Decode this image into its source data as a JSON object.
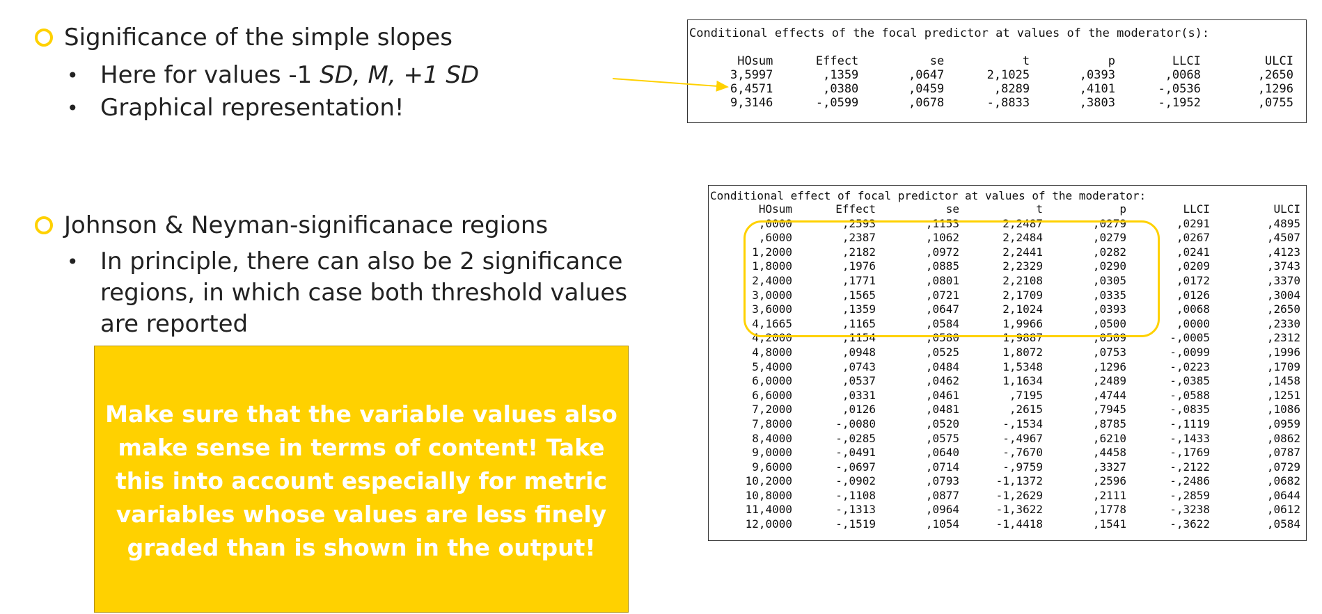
{
  "bullets": {
    "simple_slopes": {
      "title": "Significance of the simple slopes",
      "sub1_prefix": "Here for values -1 ",
      "sub1_sd1": "SD",
      "sub1_sep1": ", ",
      "sub1_m": "M",
      "sub1_sep2": ", +1 ",
      "sub1_sd2": "SD",
      "sub2": "Graphical representation!"
    },
    "jn": {
      "title": "Johnson & Neyman-significanace regions",
      "sub1_line1": "In principle, there can also be 2 significance",
      "sub1_line2": "regions, in which case both threshold values",
      "sub1_line3": "are reported"
    }
  },
  "note": {
    "text": "Make sure that the variable values also make sense in terms of content! Take this into account especially for metric variables whose values are less finely graded than is shown in the output!"
  },
  "colors": {
    "accent": "#FFD100",
    "note_text": "#FFFFFF"
  },
  "icons": {
    "bullet_level1": "circle-outline-icon",
    "bullet_level2": "dot-icon"
  },
  "table1": {
    "title": "Conditional effects of the focal predictor at values of the moderator(s):",
    "headers": [
      "HOsum",
      "Effect",
      "se",
      "t",
      "p",
      "LLCI",
      "ULCI"
    ],
    "rows": [
      [
        "3,5997",
        ",1359",
        ",0647",
        "2,1025",
        ",0393",
        ",0068",
        ",2650"
      ],
      [
        "6,4571",
        ",0380",
        ",0459",
        ",8289",
        ",4101",
        "-,0536",
        ",1296"
      ],
      [
        "9,3146",
        "-,0599",
        ",0678",
        "-,8833",
        ",3803",
        "-,1952",
        ",0755"
      ]
    ]
  },
  "table2": {
    "title": "Conditional effect of focal predictor at values of the moderator:",
    "headers": [
      "HOsum",
      "Effect",
      "se",
      "t",
      "p",
      "LLCI",
      "ULCI"
    ],
    "rows": [
      [
        ",0000",
        ",2593",
        ",1153",
        "2,2487",
        ",0279",
        ",0291",
        ",4895"
      ],
      [
        ",6000",
        ",2387",
        ",1062",
        "2,2484",
        ",0279",
        ",0267",
        ",4507"
      ],
      [
        "1,2000",
        ",2182",
        ",0972",
        "2,2441",
        ",0282",
        ",0241",
        ",4123"
      ],
      [
        "1,8000",
        ",1976",
        ",0885",
        "2,2329",
        ",0290",
        ",0209",
        ",3743"
      ],
      [
        "2,4000",
        ",1771",
        ",0801",
        "2,2108",
        ",0305",
        ",0172",
        ",3370"
      ],
      [
        "3,0000",
        ",1565",
        ",0721",
        "2,1709",
        ",0335",
        ",0126",
        ",3004"
      ],
      [
        "3,6000",
        ",1359",
        ",0647",
        "2,1024",
        ",0393",
        ",0068",
        ",2650"
      ],
      [
        "4,1665",
        ",1165",
        ",0584",
        "1,9966",
        ",0500",
        ",0000",
        ",2330"
      ],
      [
        "4,2000",
        ",1154",
        ",0580",
        "1,9887",
        ",0509",
        "-,0005",
        ",2312"
      ],
      [
        "4,8000",
        ",0948",
        ",0525",
        "1,8072",
        ",0753",
        "-,0099",
        ",1996"
      ],
      [
        "5,4000",
        ",0743",
        ",0484",
        "1,5348",
        ",1296",
        "-,0223",
        ",1709"
      ],
      [
        "6,0000",
        ",0537",
        ",0462",
        "1,1634",
        ",2489",
        "-,0385",
        ",1458"
      ],
      [
        "6,6000",
        ",0331",
        ",0461",
        ",7195",
        ",4744",
        "-,0588",
        ",1251"
      ],
      [
        "7,2000",
        ",0126",
        ",0481",
        ",2615",
        ",7945",
        "-,0835",
        ",1086"
      ],
      [
        "7,8000",
        "-,0080",
        ",0520",
        "-,1534",
        ",8785",
        "-,1119",
        ",0959"
      ],
      [
        "8,4000",
        "-,0285",
        ",0575",
        "-,4967",
        ",6210",
        "-,1433",
        ",0862"
      ],
      [
        "9,0000",
        "-,0491",
        ",0640",
        "-,7670",
        ",4458",
        "-,1769",
        ",0787"
      ],
      [
        "9,6000",
        "-,0697",
        ",0714",
        "-,9759",
        ",3327",
        "-,2122",
        ",0729"
      ],
      [
        "10,2000",
        "-,0902",
        ",0793",
        "-1,1372",
        ",2596",
        "-,2486",
        ",0682"
      ],
      [
        "10,8000",
        "-,1108",
        ",0877",
        "-1,2629",
        ",2111",
        "-,2859",
        ",0644"
      ],
      [
        "11,4000",
        "-,1313",
        ",0964",
        "-1,3622",
        ",1778",
        "-,3238",
        ",0612"
      ],
      [
        "12,0000",
        "-,1519",
        ",1054",
        "-1,4418",
        ",1541",
        "-,3622",
        ",0584"
      ]
    ]
  }
}
